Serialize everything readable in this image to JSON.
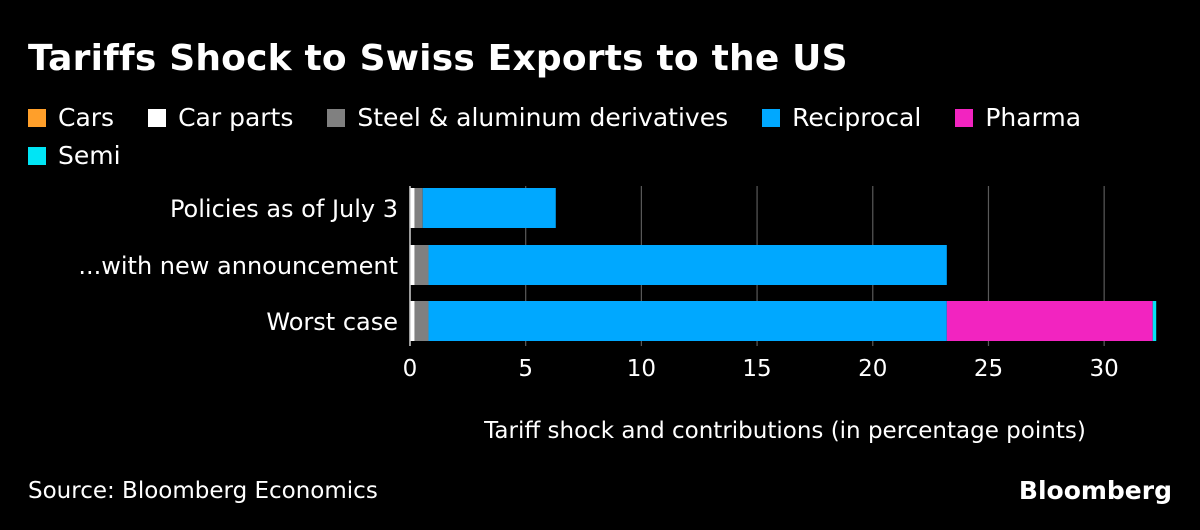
{
  "chart_data": {
    "type": "bar",
    "orientation": "horizontal",
    "stacked": true,
    "title": "Tariffs Shock to Swiss Exports to the US",
    "xlabel": "Tariff shock and contributions (in percentage points)",
    "ylabel": "",
    "xlim": [
      0,
      32.5
    ],
    "xticks": [
      0,
      5,
      10,
      15,
      20,
      25,
      30
    ],
    "grid": true,
    "legend_position": "top-left",
    "categories": [
      "Policies as of July 3",
      "...with new announcement",
      "Worst case"
    ],
    "series": [
      {
        "name": "Cars",
        "color": "#ff9f2a",
        "values": [
          0.02,
          0.02,
          0.02
        ]
      },
      {
        "name": "Car parts",
        "color": "#ffffff",
        "values": [
          0.18,
          0.18,
          0.18
        ]
      },
      {
        "name": "Steel & aluminum derivatives",
        "color": "#808080",
        "values": [
          0.35,
          0.6,
          0.6
        ]
      },
      {
        "name": "Reciprocal",
        "color": "#00a8ff",
        "values": [
          5.75,
          22.4,
          22.4
        ]
      },
      {
        "name": "Pharma",
        "color": "#f224c0",
        "values": [
          0,
          0,
          8.9
        ]
      },
      {
        "name": "Semi",
        "color": "#00e5f5",
        "values": [
          0,
          0,
          0.15
        ]
      }
    ]
  },
  "source": "Source: Bloomberg Economics",
  "brand": "Bloomberg"
}
